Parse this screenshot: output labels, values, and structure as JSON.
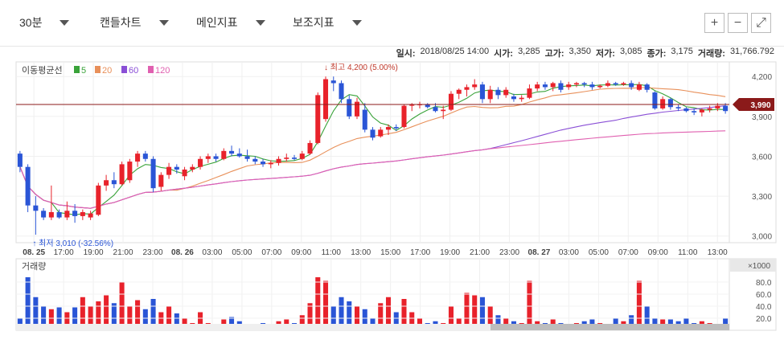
{
  "toolbar": {
    "interval": "30분",
    "chart_type": "캔들차트",
    "main_indicator": "메인지표",
    "sub_indicator": "보조지표",
    "zoom_in": "+",
    "zoom_out": "−",
    "expand": "⤢"
  },
  "info": {
    "date_label": "일시:",
    "date_value": "2018/08/25 14:00",
    "open_label": "시가:",
    "open_value": "3,285",
    "high_label": "고가:",
    "high_value": "3,350",
    "low_label": "저가:",
    "low_value": "3,085",
    "close_label": "종가:",
    "close_value": "3,175",
    "volume_label": "거래량:",
    "volume_value": "31,766.792"
  },
  "chart_data": {
    "type": "candlestick",
    "ma_legend": {
      "title": "이동평균선",
      "items": [
        {
          "name": "5",
          "color": "#3aa33a"
        },
        {
          "name": "20",
          "color": "#e8905a"
        },
        {
          "name": "60",
          "color": "#8a4fd6"
        },
        {
          "name": "120",
          "color": "#e060b0"
        }
      ]
    },
    "price_axis": {
      "ticks": [
        "4,200",
        "3,900",
        "3,600",
        "3,300",
        "3,000"
      ],
      "tick_values": [
        4200,
        3900,
        3600,
        3300,
        3000
      ],
      "range": [
        2950,
        4310
      ]
    },
    "current_price": {
      "value": 3990,
      "label": "3,990"
    },
    "max_annotation": {
      "label": "최고 4,200 (5.00%)",
      "value": 4200,
      "index": 39
    },
    "min_annotation": {
      "label": "최저 3,010 (-32.56%)",
      "value": 3010,
      "index": 2
    },
    "x_labels": [
      "08. 25",
      "17:00",
      "19:00",
      "21:00",
      "23:00",
      "08. 26",
      "03:00",
      "05:00",
      "07:00",
      "09:00",
      "11:00",
      "13:00",
      "15:00",
      "17:00",
      "19:00",
      "21:00",
      "23:00",
      "08. 27",
      "03:00",
      "05:00",
      "07:00",
      "09:00",
      "11:00",
      "13:00"
    ],
    "x_label_bold": [
      "08. 25",
      "08. 26",
      "08. 27"
    ],
    "volume_panel": {
      "title": "거래량",
      "unit_label": "×1000",
      "ticks": [
        "80.0",
        "60.0",
        "40.0",
        "20.0"
      ],
      "tick_values": [
        80,
        60,
        40,
        20
      ],
      "range": [
        0,
        100
      ]
    },
    "candles": [
      {
        "o": 3620,
        "h": 3640,
        "l": 3480,
        "c": 3520,
        "v": 20
      },
      {
        "o": 3520,
        "h": 3540,
        "l": 3180,
        "c": 3230,
        "v": 88
      },
      {
        "o": 3230,
        "h": 3300,
        "l": 3010,
        "c": 3190,
        "v": 55
      },
      {
        "o": 3190,
        "h": 3210,
        "l": 3120,
        "c": 3140,
        "v": 40
      },
      {
        "o": 3140,
        "h": 3380,
        "l": 3120,
        "c": 3180,
        "v": 35
      },
      {
        "o": 3180,
        "h": 3200,
        "l": 3130,
        "c": 3140,
        "v": 38
      },
      {
        "o": 3140,
        "h": 3260,
        "l": 3120,
        "c": 3190,
        "v": 30
      },
      {
        "o": 3190,
        "h": 3240,
        "l": 3100,
        "c": 3150,
        "v": 38
      },
      {
        "o": 3150,
        "h": 3200,
        "l": 3120,
        "c": 3180,
        "v": 55
      },
      {
        "o": 3140,
        "h": 3190,
        "l": 3120,
        "c": 3170,
        "v": 40
      },
      {
        "o": 3160,
        "h": 3400,
        "l": 3150,
        "c": 3380,
        "v": 48
      },
      {
        "o": 3380,
        "h": 3460,
        "l": 3340,
        "c": 3420,
        "v": 58
      },
      {
        "o": 3420,
        "h": 3480,
        "l": 3360,
        "c": 3390,
        "v": 45
      },
      {
        "o": 3390,
        "h": 3560,
        "l": 3380,
        "c": 3540,
        "v": 80
      },
      {
        "o": 3420,
        "h": 3580,
        "l": 3400,
        "c": 3560,
        "v": 40
      },
      {
        "o": 3560,
        "h": 3640,
        "l": 3520,
        "c": 3620,
        "v": 50
      },
      {
        "o": 3620,
        "h": 3640,
        "l": 3560,
        "c": 3580,
        "v": 35
      },
      {
        "o": 3580,
        "h": 3600,
        "l": 3330,
        "c": 3360,
        "v": 52
      },
      {
        "o": 3370,
        "h": 3480,
        "l": 3340,
        "c": 3460,
        "v": 30
      },
      {
        "o": 3460,
        "h": 3550,
        "l": 3430,
        "c": 3520,
        "v": 40
      },
      {
        "o": 3520,
        "h": 3540,
        "l": 3470,
        "c": 3500,
        "v": 28
      },
      {
        "o": 3450,
        "h": 3520,
        "l": 3420,
        "c": 3500,
        "v": 20
      },
      {
        "o": 3500,
        "h": 3540,
        "l": 3480,
        "c": 3520,
        "v": 12
      },
      {
        "o": 3520,
        "h": 3600,
        "l": 3500,
        "c": 3580,
        "v": 30
      },
      {
        "o": 3580,
        "h": 3620,
        "l": 3550,
        "c": 3600,
        "v": 12
      },
      {
        "o": 3600,
        "h": 3620,
        "l": 3560,
        "c": 3580,
        "v": 10
      },
      {
        "o": 3580,
        "h": 3660,
        "l": 3570,
        "c": 3640,
        "v": 18
      },
      {
        "o": 3640,
        "h": 3680,
        "l": 3600,
        "c": 3620,
        "v": 22
      },
      {
        "o": 3620,
        "h": 3660,
        "l": 3590,
        "c": 3600,
        "v": 15
      },
      {
        "o": 3600,
        "h": 3650,
        "l": 3560,
        "c": 3580,
        "v": 8
      },
      {
        "o": 3580,
        "h": 3600,
        "l": 3540,
        "c": 3560,
        "v": 8
      },
      {
        "o": 3560,
        "h": 3580,
        "l": 3520,
        "c": 3540,
        "v": 12
      },
      {
        "o": 3540,
        "h": 3570,
        "l": 3510,
        "c": 3550,
        "v": 10
      },
      {
        "o": 3550,
        "h": 3600,
        "l": 3530,
        "c": 3580,
        "v": 15
      },
      {
        "o": 3580,
        "h": 3620,
        "l": 3560,
        "c": 3590,
        "v": 18
      },
      {
        "o": 3590,
        "h": 3610,
        "l": 3570,
        "c": 3580,
        "v": 12
      },
      {
        "o": 3580,
        "h": 3640,
        "l": 3570,
        "c": 3620,
        "v": 25
      },
      {
        "o": 3620,
        "h": 3720,
        "l": 3610,
        "c": 3700,
        "v": 45
      },
      {
        "o": 3700,
        "h": 4080,
        "l": 3690,
        "c": 4060,
        "v": 88
      },
      {
        "o": 3880,
        "h": 4200,
        "l": 3860,
        "c": 4180,
        "v": 82
      },
      {
        "o": 4170,
        "h": 4200,
        "l": 4090,
        "c": 4150,
        "v": 40
      },
      {
        "o": 4150,
        "h": 4170,
        "l": 4000,
        "c": 4030,
        "v": 55
      },
      {
        "o": 4030,
        "h": 4060,
        "l": 3880,
        "c": 3900,
        "v": 48
      },
      {
        "o": 3900,
        "h": 4040,
        "l": 3880,
        "c": 4010,
        "v": 40
      },
      {
        "o": 3950,
        "h": 4000,
        "l": 3780,
        "c": 3800,
        "v": 35
      },
      {
        "o": 3800,
        "h": 3820,
        "l": 3720,
        "c": 3740,
        "v": 20
      },
      {
        "o": 3750,
        "h": 3820,
        "l": 3740,
        "c": 3800,
        "v": 45
      },
      {
        "o": 3800,
        "h": 3840,
        "l": 3760,
        "c": 3820,
        "v": 55
      },
      {
        "o": 3820,
        "h": 3840,
        "l": 3790,
        "c": 3810,
        "v": 30
      },
      {
        "o": 3820,
        "h": 3990,
        "l": 3810,
        "c": 3980,
        "v": 52
      },
      {
        "o": 3980,
        "h": 4000,
        "l": 3940,
        "c": 3990,
        "v": 30
      },
      {
        "o": 3990,
        "h": 4010,
        "l": 3960,
        "c": 3990,
        "v": 20
      },
      {
        "o": 3990,
        "h": 4000,
        "l": 3960,
        "c": 3970,
        "v": 12
      },
      {
        "o": 3970,
        "h": 4000,
        "l": 3930,
        "c": 3940,
        "v": 15
      },
      {
        "o": 3940,
        "h": 3980,
        "l": 3880,
        "c": 3950,
        "v": 12
      },
      {
        "o": 3950,
        "h": 4090,
        "l": 3940,
        "c": 4070,
        "v": 40
      },
      {
        "o": 4070,
        "h": 4110,
        "l": 4030,
        "c": 4100,
        "v": 20
      },
      {
        "o": 4100,
        "h": 4140,
        "l": 4050,
        "c": 4120,
        "v": 62
      },
      {
        "o": 4120,
        "h": 4180,
        "l": 4100,
        "c": 4140,
        "v": 58
      },
      {
        "o": 4140,
        "h": 4160,
        "l": 4000,
        "c": 4030,
        "v": 55
      },
      {
        "o": 4030,
        "h": 4130,
        "l": 4000,
        "c": 4100,
        "v": 40
      },
      {
        "o": 4100,
        "h": 4120,
        "l": 4030,
        "c": 4060,
        "v": 25
      },
      {
        "o": 4060,
        "h": 4120,
        "l": 4040,
        "c": 4100,
        "v": 20
      },
      {
        "o": 4050,
        "h": 4070,
        "l": 4010,
        "c": 4030,
        "v": 15
      },
      {
        "o": 4030,
        "h": 4060,
        "l": 4010,
        "c": 4040,
        "v": 12
      },
      {
        "o": 4040,
        "h": 4140,
        "l": 4030,
        "c": 4110,
        "v": 82
      },
      {
        "o": 4110,
        "h": 4160,
        "l": 4090,
        "c": 4140,
        "v": 15
      },
      {
        "o": 4140,
        "h": 4160,
        "l": 4100,
        "c": 4120,
        "v": 12
      },
      {
        "o": 4120,
        "h": 4160,
        "l": 4090,
        "c": 4150,
        "v": 18
      },
      {
        "o": 4150,
        "h": 4170,
        "l": 4080,
        "c": 4100,
        "v": 12
      },
      {
        "o": 4120,
        "h": 4160,
        "l": 4100,
        "c": 4140,
        "v": 10
      },
      {
        "o": 4140,
        "h": 4160,
        "l": 4120,
        "c": 4150,
        "v": 12
      },
      {
        "o": 4150,
        "h": 4160,
        "l": 4120,
        "c": 4140,
        "v": 15
      },
      {
        "o": 4140,
        "h": 4160,
        "l": 4100,
        "c": 4120,
        "v": 18
      },
      {
        "o": 4120,
        "h": 4140,
        "l": 4110,
        "c": 4130,
        "v": 12
      },
      {
        "o": 4130,
        "h": 4170,
        "l": 4120,
        "c": 4150,
        "v": 10
      },
      {
        "o": 4150,
        "h": 4160,
        "l": 4130,
        "c": 4140,
        "v": 20
      },
      {
        "o": 4140,
        "h": 4160,
        "l": 4130,
        "c": 4150,
        "v": 15
      },
      {
        "o": 4150,
        "h": 4170,
        "l": 4100,
        "c": 4120,
        "v": 25
      },
      {
        "o": 4100,
        "h": 4160,
        "l": 4090,
        "c": 4140,
        "v": 82
      },
      {
        "o": 4140,
        "h": 4150,
        "l": 4080,
        "c": 4100,
        "v": 40
      },
      {
        "o": 4080,
        "h": 4090,
        "l": 3950,
        "c": 3960,
        "v": 20
      },
      {
        "o": 3960,
        "h": 4050,
        "l": 3950,
        "c": 4030,
        "v": 18
      },
      {
        "o": 4030,
        "h": 4040,
        "l": 3950,
        "c": 3970,
        "v": 18
      },
      {
        "o": 3970,
        "h": 3990,
        "l": 3940,
        "c": 3960,
        "v": 15
      },
      {
        "o": 3960,
        "h": 3970,
        "l": 3930,
        "c": 3940,
        "v": 20
      },
      {
        "o": 3940,
        "h": 3960,
        "l": 3910,
        "c": 3930,
        "v": 12
      },
      {
        "o": 3930,
        "h": 3960,
        "l": 3900,
        "c": 3950,
        "v": 15
      },
      {
        "o": 3950,
        "h": 3980,
        "l": 3930,
        "c": 3960,
        "v": 12
      },
      {
        "o": 3960,
        "h": 4000,
        "l": 3940,
        "c": 3980,
        "v": 10
      },
      {
        "o": 3980,
        "h": 4000,
        "l": 3920,
        "c": 3940,
        "v": 20
      }
    ]
  }
}
